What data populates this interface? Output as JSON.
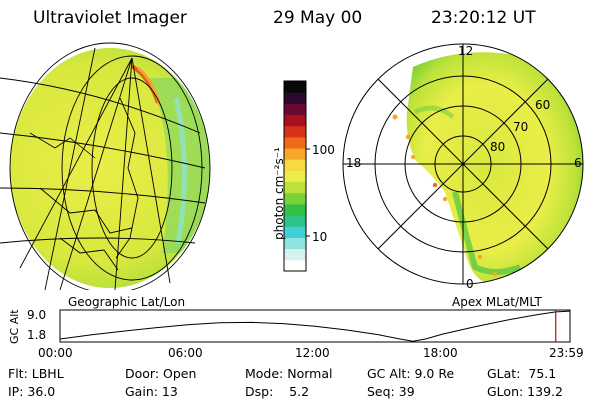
{
  "header": {
    "title": "Ultraviolet Imager",
    "date": "29 May 00",
    "time": "23:20:12 UT"
  },
  "left_panel": {
    "label": "Geographic Lat/Lon"
  },
  "right_panel": {
    "label": "Apex MLat/MLT",
    "mlt_labels": [
      "12",
      "18",
      "6",
      "0"
    ],
    "mlat_labels": [
      "60",
      "70",
      "80"
    ]
  },
  "colorbar": {
    "unit_label": "photon cm⁻²s⁻¹",
    "ticks": [
      "100",
      "10"
    ],
    "colors": [
      "#ffffff",
      "#d4f2ee",
      "#8fe3de",
      "#3fd0d6",
      "#2dc48a",
      "#36c043",
      "#7ad13a",
      "#bde23a",
      "#e9ee48",
      "#f6d944",
      "#f7a628",
      "#f0691a",
      "#d93018",
      "#a8101f",
      "#6b0a30",
      "#2a0930",
      "#080808"
    ]
  },
  "altitude_plot": {
    "ylabel": "GC Alt",
    "yticks": [
      "9.0",
      "1.8"
    ],
    "xticks": [
      "00:00",
      "06:00",
      "12:00",
      "18:00",
      "23:59"
    ],
    "ymin": 1.0,
    "ymax": 9.5,
    "series_hours": [
      0,
      1.5,
      3,
      4.5,
      6,
      7.5,
      9,
      10.5,
      12,
      13.5,
      15,
      16,
      16.6,
      17.2,
      18,
      19.5,
      21,
      22.5,
      23.33,
      24
    ],
    "series_alt": [
      1.8,
      2.9,
      3.9,
      4.8,
      5.6,
      6.1,
      6.2,
      5.9,
      5.2,
      4.2,
      2.9,
      1.8,
      1.2,
      1.8,
      3.1,
      5.0,
      6.8,
      8.3,
      9.0,
      9.2
    ],
    "current_hour": 23.33,
    "marker_color": "#cc0000"
  },
  "info": {
    "filter": "Flt: LBHL",
    "ip": "IP: 36.0",
    "door": "Door: Open",
    "gain": "Gain: 13",
    "mode": "Mode: Normal",
    "dsp": "Dsp:    5.2",
    "gc_alt": "GC Alt: 9.0 Re",
    "seq": "Seq: 39",
    "glat": "GLat:  75.1",
    "glon": "GLon: 139.2"
  }
}
